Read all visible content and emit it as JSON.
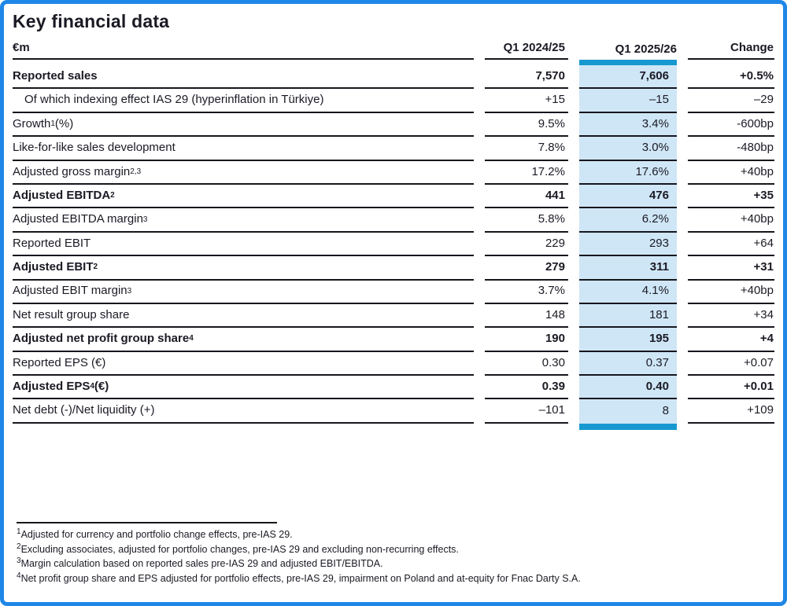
{
  "page": {
    "title": "Key financial data"
  },
  "colors": {
    "frame_border": "#1f87e8",
    "highlight_column_bg": "#cfe6f6",
    "highlight_accent_bar": "#1798d0",
    "rule_line": "#16161d",
    "text": "#1a1a24"
  },
  "table": {
    "unit_label": "€m",
    "columns": [
      "Q1 2024/25",
      "Q1 2025/26",
      "Change"
    ],
    "rows": [
      {
        "label": "Reported sales",
        "sup": "",
        "suffix": "",
        "bold": true,
        "indent": false,
        "values": [
          "7,570",
          "7,606",
          "+0.5%"
        ]
      },
      {
        "label": "Of which indexing effect IAS 29 (hyperinflation in Türkiye)",
        "sup": "",
        "suffix": "",
        "bold": false,
        "indent": true,
        "values": [
          "+15",
          "–15",
          "–29"
        ]
      },
      {
        "label": "Growth",
        "sup": "1",
        "suffix": " (%)",
        "bold": false,
        "indent": false,
        "values": [
          "9.5%",
          "3.4%",
          "-600bp"
        ]
      },
      {
        "label": "Like-for-like sales development",
        "sup": "",
        "suffix": "",
        "bold": false,
        "indent": false,
        "values": [
          "7.8%",
          "3.0%",
          "-480bp"
        ]
      },
      {
        "label": "Adjusted gross margin",
        "sup": "2,3",
        "suffix": "",
        "bold": false,
        "indent": false,
        "values": [
          "17.2%",
          "17.6%",
          "+40bp"
        ]
      },
      {
        "label": "Adjusted EBITDA",
        "sup": "2",
        "suffix": "",
        "bold": true,
        "indent": false,
        "values": [
          "441",
          "476",
          "+35"
        ]
      },
      {
        "label": "Adjusted EBITDA margin",
        "sup": "3",
        "suffix": "",
        "bold": false,
        "indent": false,
        "values": [
          "5.8%",
          "6.2%",
          "+40bp"
        ]
      },
      {
        "label": "Reported EBIT",
        "sup": "",
        "suffix": "",
        "bold": false,
        "indent": false,
        "values": [
          "229",
          "293",
          "+64"
        ]
      },
      {
        "label": "Adjusted EBIT",
        "sup": "2",
        "suffix": "",
        "bold": true,
        "indent": false,
        "values": [
          "279",
          "311",
          "+31"
        ]
      },
      {
        "label": "Adjusted EBIT margin",
        "sup": "3",
        "suffix": "",
        "bold": false,
        "indent": false,
        "values": [
          "3.7%",
          "4.1%",
          "+40bp"
        ]
      },
      {
        "label": "Net result group share",
        "sup": "",
        "suffix": "",
        "bold": false,
        "indent": false,
        "values": [
          "148",
          "181",
          "+34"
        ]
      },
      {
        "label": "Adjusted net profit group share",
        "sup": "4",
        "suffix": "",
        "bold": true,
        "indent": false,
        "values": [
          "190",
          "195",
          "+4"
        ]
      },
      {
        "label": "Reported EPS (€)",
        "sup": "",
        "suffix": "",
        "bold": false,
        "indent": false,
        "values": [
          "0.30",
          "0.37",
          "+0.07"
        ]
      },
      {
        "label": "Adjusted EPS",
        "sup": "4",
        "suffix": " (€)",
        "bold": true,
        "indent": false,
        "values": [
          "0.39",
          "0.40",
          "+0.01"
        ]
      },
      {
        "label": "Net debt (-)/Net liquidity (+)",
        "sup": "",
        "suffix": "",
        "bold": false,
        "indent": false,
        "values": [
          "–101",
          "8",
          "+109"
        ]
      }
    ]
  },
  "footnotes": [
    {
      "sup": "1",
      "text": "Adjusted for currency and portfolio change effects, pre-IAS 29."
    },
    {
      "sup": "2",
      "text": "Excluding associates, adjusted for portfolio changes, pre-IAS 29 and excluding non-recurring effects."
    },
    {
      "sup": "3",
      "text": "Margin calculation based on reported sales pre-IAS 29 and adjusted EBIT/EBITDA."
    },
    {
      "sup": "4",
      "text": "Net profit group share and EPS adjusted for portfolio effects, pre-IAS 29, impairment on Poland and at-equity for Fnac Darty S.A."
    }
  ]
}
